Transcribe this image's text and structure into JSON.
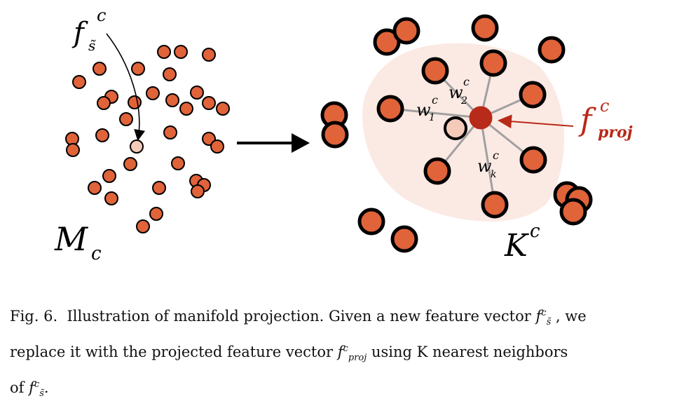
{
  "figure": {
    "colors": {
      "dot_fill": "#e0633a",
      "dot_stroke": "#000000",
      "query_fill": "#f4cbb9",
      "proj_fill": "#b82a19",
      "hull_fill": "#fbe9e3",
      "spoke": "#a0a0a0",
      "proj_label": "#b82a19"
    },
    "left": {
      "manifold_label": "M",
      "manifold_sub": "c",
      "query_label": "f",
      "query_sub": "s̃",
      "query_sup": "c"
    },
    "right": {
      "knn_label": "K",
      "knn_sup": "c",
      "proj_label": "f",
      "proj_sup": "c",
      "proj_sub": "proj",
      "weights": [
        {
          "w": "w",
          "sub": "1",
          "sup": "c"
        },
        {
          "w": "w",
          "sub": "2",
          "sup": "c"
        },
        {
          "w": "w",
          "sub": "k",
          "sup": "c"
        }
      ]
    },
    "arrow_icon": "right-arrow-icon"
  },
  "caption": {
    "fig_label": "Fig. 6.",
    "line1_text": "Illustration of manifold projection. Given a new feature vector",
    "line1_sym": {
      "f": "f",
      "sub": "s̃",
      "sup": "c"
    },
    "line1_end": ", we",
    "line2_start": "replace it with the projected feature vector",
    "line2_sym": {
      "f": "f",
      "sub": "proj",
      "sup": "c"
    },
    "line2_end": "using K nearest neighbors",
    "line3_start": "of",
    "line3_sym": {
      "f": "f",
      "sub": "s̃",
      "sup": "c"
    },
    "line3_end": "."
  }
}
